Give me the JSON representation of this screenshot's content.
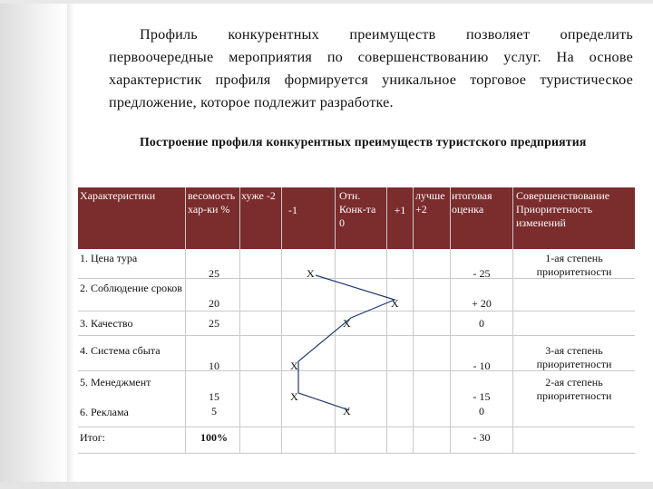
{
  "intro_text": "Профиль конкурентных преимуществ позволяет определить первоочередные мероприятия по совершенствованию услуг. На основе характеристик профиля формируется уникальное торговое туристическое предложение, которое подлежит разработке.",
  "subtitle": "Построение профиля конкурентных преимуществ туристского предприятия",
  "table": {
    "header_bg": "#7b2c2c",
    "headers": {
      "characteristic": "Характеристики",
      "weight": "весомость хар-ки %",
      "worse2": "хуже -2",
      "minus1": "-1",
      "relative": "Отн. Конк-та 0",
      "plus1": "+1",
      "better2": "лучше +2",
      "total": "итоговая оценка",
      "improvement": "Совершенствование Приоритетность изменений"
    },
    "rows": [
      {
        "name": "1. Цена тура",
        "weight": "25",
        "total": "- 25",
        "note": "1-ая степень приоритетности"
      },
      {
        "name": "2. Соблюдение сроков",
        "weight": "20",
        "total": "+ 20",
        "note": ""
      },
      {
        "name": "3. Качество",
        "weight": "25",
        "total": "0",
        "note": ""
      },
      {
        "name": "4. Система сбыта",
        "weight": "10",
        "total": "- 10",
        "note": "3-ая степень приоритетности"
      },
      {
        "name": "5. Менеджмент",
        "weight": "15",
        "total": "- 15",
        "note": "2-ая степень приоритетности"
      },
      {
        "name": "6. Реклама",
        "weight": "5",
        "total": "0",
        "note": ""
      },
      {
        "name": "Итог:",
        "weight": "100%",
        "total": "- 30",
        "note": ""
      }
    ],
    "marker": "Х"
  }
}
